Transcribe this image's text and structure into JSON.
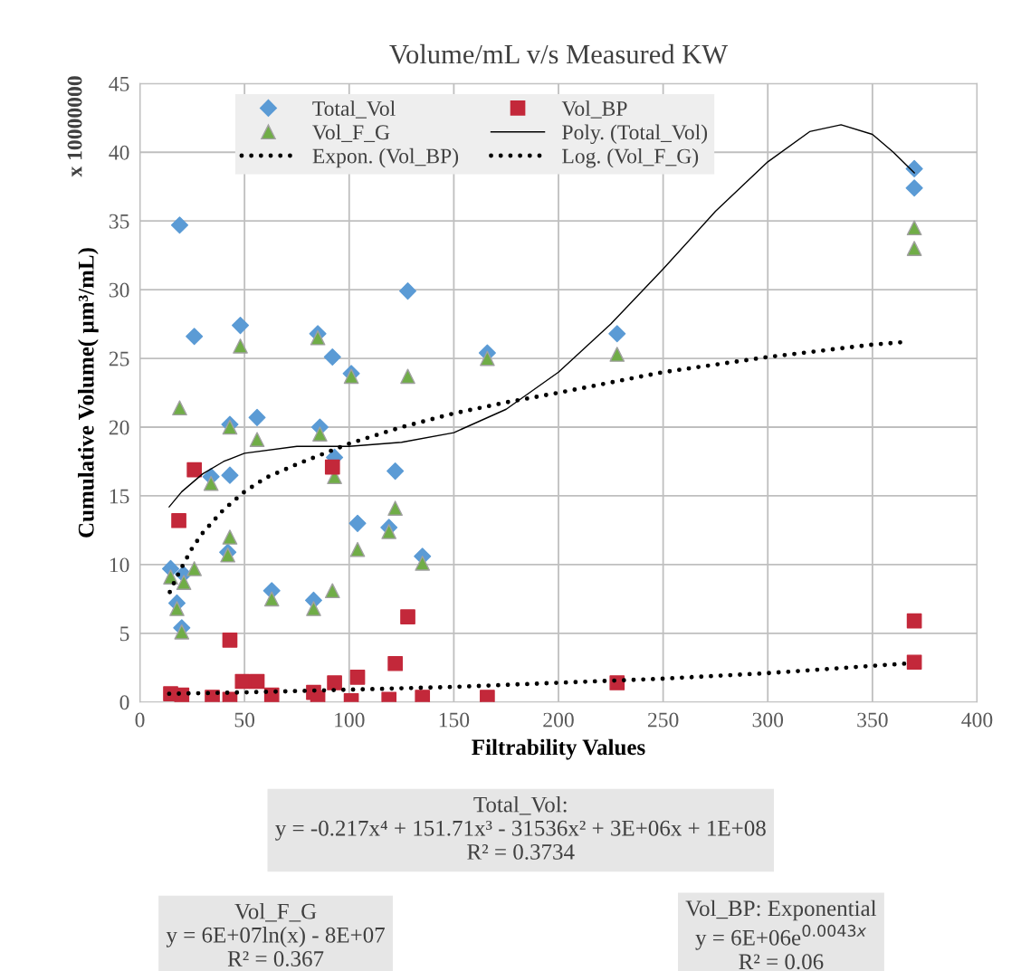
{
  "chart_data": {
    "type": "scatter",
    "title": "Volume/mL v/s Measured KW",
    "xlabel": "Filtrability Values",
    "ylabel": "Cumulative Volume( µm³/mL)",
    "xlim": [
      0,
      400
    ],
    "xticks": [
      0,
      50,
      100,
      150,
      200,
      250,
      300,
      350,
      400
    ],
    "ylim": [
      0,
      45
    ],
    "yticks": [
      0,
      5,
      10,
      15,
      20,
      25,
      30,
      35,
      40,
      45
    ],
    "grid": true,
    "legend": "top",
    "series": [
      {
        "name": "Total_Vol",
        "marker": "diamond",
        "color": "#5b9bd5",
        "x": [
          19,
          26,
          48,
          43,
          56,
          34,
          43,
          42,
          14.7,
          20.8,
          17.7,
          20,
          63,
          128,
          85,
          92,
          101,
          86,
          93,
          122,
          104,
          119,
          135,
          83,
          166,
          228,
          370,
          370
        ],
        "values": [
          34.7,
          26.6,
          27.4,
          20.2,
          20.7,
          16.4,
          16.5,
          10.9,
          9.7,
          9.3,
          7.2,
          5.4,
          8.1,
          29.9,
          26.8,
          25.1,
          23.9,
          20.0,
          17.8,
          16.8,
          13.0,
          12.7,
          10.6,
          7.4,
          25.4,
          26.8,
          38.8,
          37.4
        ]
      },
      {
        "name": "Vol_F_G",
        "marker": "triangle",
        "color": "#70ad47",
        "x": [
          48,
          19,
          43,
          56,
          34,
          43,
          42,
          14.7,
          21,
          26,
          17.7,
          20,
          63,
          85,
          101,
          128,
          86,
          93,
          122,
          104,
          119,
          135,
          83,
          92,
          166,
          228,
          370,
          370
        ],
        "values": [
          25.9,
          21.4,
          20.0,
          19.1,
          15.9,
          12.0,
          10.7,
          9.1,
          8.7,
          9.7,
          6.8,
          5.1,
          7.5,
          26.5,
          23.7,
          23.7,
          19.5,
          16.4,
          14.1,
          11.1,
          12.4,
          10.1,
          6.8,
          8.1,
          25.0,
          25.3,
          34.5,
          33.0
        ]
      },
      {
        "name": "Expon. (Vol_BP)",
        "type": "line",
        "line_style": "dotted",
        "color": "#000000",
        "x": [
          14,
          50,
          100,
          150,
          200,
          250,
          300,
          366
        ],
        "values": [
          0.6,
          0.7,
          0.9,
          1.1,
          1.4,
          1.7,
          2.1,
          2.8
        ]
      },
      {
        "name": "Vol_BP",
        "marker": "square",
        "color": "#c3283a",
        "x": [
          26,
          18.6,
          43,
          14.7,
          20,
          34.6,
          43,
          49,
          56,
          63,
          92,
          128,
          122,
          104,
          93,
          83,
          85,
          101,
          119,
          135,
          166,
          228,
          370,
          370
        ],
        "values": [
          16.9,
          13.2,
          4.5,
          0.6,
          0.5,
          0.35,
          0.2,
          1.5,
          1.5,
          0.5,
          17.1,
          6.2,
          2.8,
          1.8,
          1.4,
          0.7,
          0.3,
          0.1,
          0.2,
          0.35,
          0.35,
          1.4,
          5.9,
          2.9
        ]
      },
      {
        "name": "Poly. (Total_Vol)",
        "type": "line",
        "line_style": "solid",
        "color": "#000000",
        "x": [
          14,
          20,
          30,
          40,
          50,
          75,
          100,
          125,
          150,
          175,
          200,
          225,
          250,
          275,
          300,
          320,
          335,
          350,
          360,
          370
        ],
        "values": [
          14.2,
          15.3,
          16.6,
          17.5,
          18.1,
          18.6,
          18.6,
          18.9,
          19.6,
          21.3,
          24.0,
          27.5,
          31.5,
          35.7,
          39.3,
          41.5,
          42.0,
          41.3,
          40.0,
          38.5
        ]
      },
      {
        "name": "Log. (Vol_F_G)",
        "type": "line",
        "line_style": "dotted",
        "color": "#000000",
        "x": [
          14.3,
          17,
          20,
          25,
          30,
          40,
          50,
          60,
          75,
          100,
          125,
          150,
          175,
          200,
          250,
          300,
          350,
          366
        ],
        "values": [
          8.0,
          8.9,
          9.8,
          11.2,
          12.3,
          14.0,
          15.3,
          16.3,
          17.3,
          18.8,
          20.0,
          21.0,
          21.8,
          22.5,
          24.0,
          25.1,
          26.0,
          26.2
        ]
      }
    ],
    "annotations": [
      "x 10000000",
      "Total_Vol:\ny = -0.217x⁴ + 151.71x³ - 31536x² + 3E+06x + 1E+08\nR² = 0.3734",
      "Vol_F_G\ny = 6E+07ln(x) - 8E+07\nR² = 0.367",
      "Vol_BP: Exponential\ny = 6E+06e$^{0.0043x}$\nR² = 0.06"
    ]
  }
}
